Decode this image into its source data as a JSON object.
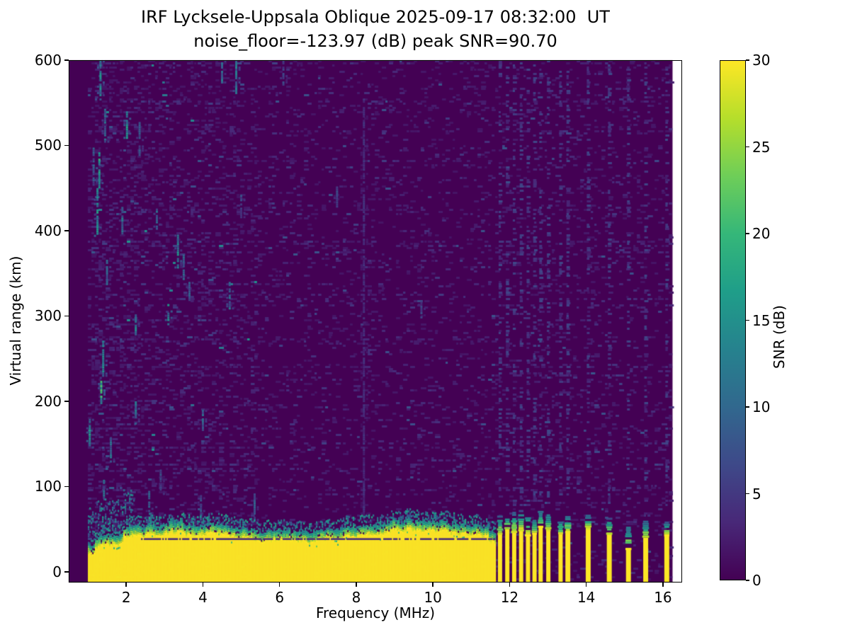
{
  "title_line1": "IRF Lycksele-Uppsala Oblique 2025-09-17 08:32:00  UT",
  "title_line2": "noise_floor=-123.97 (dB) peak SNR=90.70",
  "chart_data": {
    "type": "heatmap",
    "title": "IRF Lycksele-Uppsala Oblique 2025-09-17 08:32:00  UT",
    "subtitle": "noise_floor=-123.97 (dB) peak SNR=90.70",
    "xlabel": "Frequency (MHz)",
    "ylabel": "Virtual range (km)",
    "colorbar_label": "SNR (dB)",
    "xlim": [
      0.5,
      16.5
    ],
    "ylim": [
      -12.5,
      600
    ],
    "clim": [
      0,
      30
    ],
    "x_ticks": [
      2,
      4,
      6,
      8,
      10,
      12,
      14,
      16
    ],
    "y_ticks": [
      0,
      100,
      200,
      300,
      400,
      500,
      600
    ],
    "colorbar_ticks": [
      0,
      5,
      10,
      15,
      20,
      25,
      30
    ],
    "colormap": "viridis",
    "colormap_stops": [
      "#440154",
      "#482878",
      "#3e4989",
      "#31688e",
      "#26828e",
      "#1f9e89",
      "#35b779",
      "#6ece58",
      "#b5de2b",
      "#fde725"
    ],
    "grid": false,
    "legend": "colorbar-right",
    "data_extent": {
      "f_min_mhz": 1.0,
      "f_max_mhz": 16.25,
      "range_min_km": -12.5,
      "range_max_km": 600
    },
    "ground_band": {
      "f_start_mhz": 1.0,
      "f_end_mhz": 11.62,
      "snr_db": 30,
      "solid_top_km_typical": 42,
      "speckle_top_km_typical": 65,
      "dark_line_km": 38.5,
      "dark_line_f_start_mhz": 2.35
    },
    "rfi_stripes": {
      "cluster": [
        {
          "f": 11.75,
          "yellow_top_km": 46,
          "cap_top_km": 68
        },
        {
          "f": 11.94,
          "yellow_top_km": 50,
          "cap_top_km": 70
        },
        {
          "f": 12.12,
          "yellow_top_km": 48,
          "cap_top_km": 72
        },
        {
          "f": 12.3,
          "yellow_top_km": 50,
          "cap_top_km": 74
        },
        {
          "f": 12.48,
          "yellow_top_km": 44,
          "cap_top_km": 70
        },
        {
          "f": 12.65,
          "yellow_top_km": 46,
          "cap_top_km": 66
        },
        {
          "f": 12.81,
          "yellow_top_km": 54,
          "cap_top_km": 72
        },
        {
          "f": 13.01,
          "yellow_top_km": 50,
          "cap_top_km": 70
        },
        {
          "f": 13.33,
          "yellow_top_km": 44,
          "cap_top_km": 62
        }
      ],
      "isolated": [
        {
          "f": 13.52,
          "yellow_top_km": 48,
          "cap_top_km": 66
        },
        {
          "f": 14.05,
          "yellow_top_km": 52,
          "cap_top_km": 68
        },
        {
          "f": 14.6,
          "yellow_top_km": 46,
          "cap_top_km": 64
        },
        {
          "f": 15.1,
          "yellow_top_km": 28,
          "cap_top_km": 55
        },
        {
          "f": 15.55,
          "yellow_top_km": 40,
          "cap_top_km": 62
        },
        {
          "f": 16.1,
          "yellow_top_km": 44,
          "cap_top_km": 60
        }
      ]
    },
    "echo_streaks": [
      {
        "f": 1.33,
        "km": [
          555,
          600
        ],
        "snr": 16
      },
      {
        "f": 1.45,
        "km": [
          505,
          548
        ],
        "snr": 12
      },
      {
        "f": 1.15,
        "km": [
          455,
          500
        ],
        "snr": 10
      },
      {
        "f": 2.02,
        "km": [
          508,
          540
        ],
        "snr": 18
      },
      {
        "f": 2.35,
        "km": [
          488,
          530
        ],
        "snr": 9
      },
      {
        "f": 1.3,
        "km": [
          448,
          492
        ],
        "snr": 20
      },
      {
        "f": 1.25,
        "km": [
          392,
          450
        ],
        "snr": 18
      },
      {
        "f": 1.9,
        "km": [
          396,
          428
        ],
        "snr": 13
      },
      {
        "f": 2.8,
        "km": [
          403,
          426
        ],
        "snr": 13
      },
      {
        "f": 4.5,
        "km": [
          575,
          600
        ],
        "snr": 14
      },
      {
        "f": 4.87,
        "km": [
          558,
          600
        ],
        "snr": 15
      },
      {
        "f": 6.1,
        "km": [
          568,
          600
        ],
        "snr": 8
      },
      {
        "f": 3.35,
        "km": [
          358,
          398
        ],
        "snr": 16
      },
      {
        "f": 3.5,
        "km": [
          344,
          372
        ],
        "snr": 11
      },
      {
        "f": 3.65,
        "km": [
          316,
          340
        ],
        "snr": 11
      },
      {
        "f": 4.7,
        "km": [
          308,
          340
        ],
        "snr": 13
      },
      {
        "f": 1.5,
        "km": [
          338,
          366
        ],
        "snr": 12
      },
      {
        "f": 2.25,
        "km": [
          278,
          302
        ],
        "snr": 15
      },
      {
        "f": 3.1,
        "km": [
          290,
          314
        ],
        "snr": 17
      },
      {
        "f": 1.4,
        "km": [
          228,
          276
        ],
        "snr": 16
      },
      {
        "f": 1.35,
        "km": [
          195,
          224
        ],
        "snr": 22
      },
      {
        "f": 2.25,
        "km": [
          175,
          200
        ],
        "snr": 13
      },
      {
        "f": 4.0,
        "km": [
          166,
          190
        ],
        "snr": 11
      },
      {
        "f": 1.05,
        "km": [
          146,
          182
        ],
        "snr": 18
      },
      {
        "f": 1.6,
        "km": [
          130,
          158
        ],
        "snr": 13
      },
      {
        "f": 1.42,
        "km": [
          86,
          108
        ],
        "snr": 12
      },
      {
        "f": 2.9,
        "km": [
          92,
          120
        ],
        "snr": 9
      },
      {
        "f": 5.0,
        "km": [
          416,
          442
        ],
        "snr": 9
      },
      {
        "f": 7.5,
        "km": [
          428,
          452
        ],
        "snr": 8
      },
      {
        "f": 8.2,
        "km": [
          60,
          555
        ],
        "snr": 5
      },
      {
        "f": 9.7,
        "km": [
          298,
          322
        ],
        "snr": 7
      },
      {
        "f": 5.35,
        "km": [
          60,
          92
        ],
        "snr": 10
      },
      {
        "f": 3.95,
        "km": [
          62,
          90
        ],
        "snr": 10
      },
      {
        "f": 2.6,
        "km": [
          60,
          95
        ],
        "snr": 11
      }
    ],
    "noise": {
      "seed": 1337,
      "base_density": 0.1,
      "left_boost_below_mhz": 5.4,
      "strong_left_below_mhz": 2.3,
      "column_noise_density": 0.3
    }
  }
}
